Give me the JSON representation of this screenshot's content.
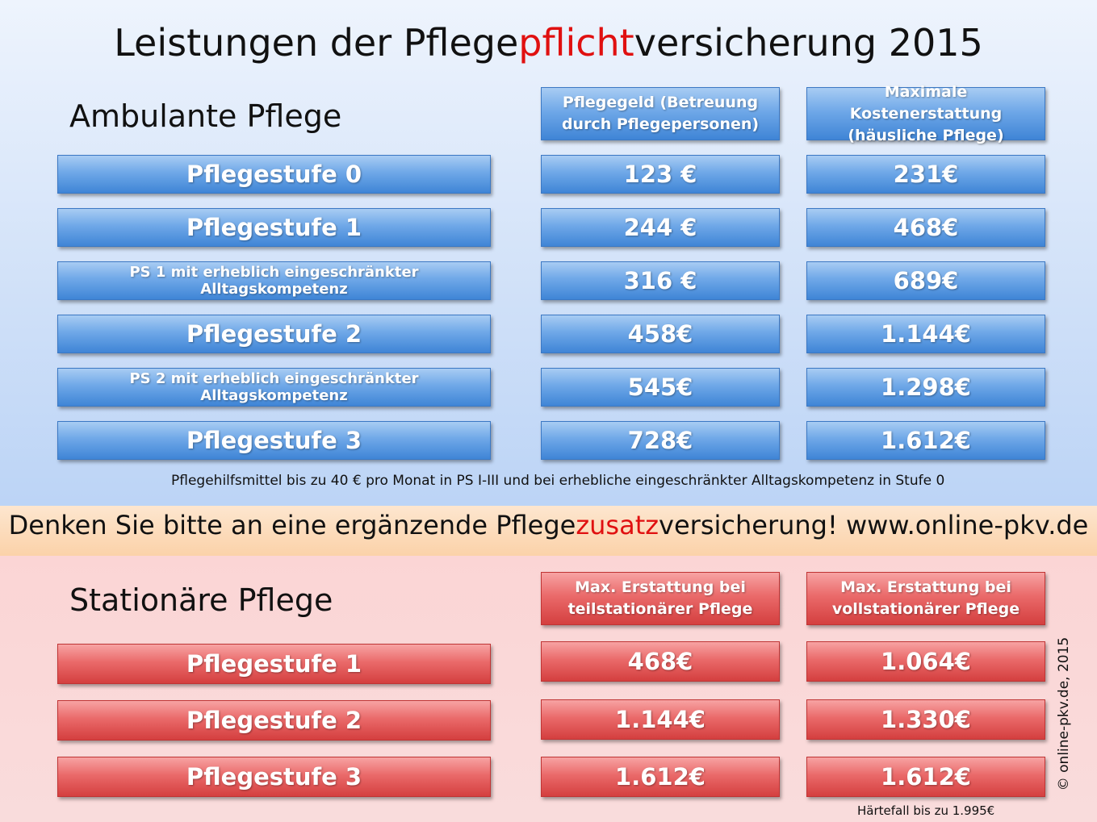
{
  "title": {
    "pre": "Leistungen der Pflege",
    "accent": "pflicht",
    "post": "versicherung 2015"
  },
  "colors": {
    "accent": "#e01010",
    "blue_box": "#4a8fdc",
    "red_box": "#e05858"
  },
  "ambulant": {
    "heading": "Ambulante Pflege",
    "col1_header": "Pflegegeld (Betreuung durch Pflegepersonen)",
    "col2_header": "Maximale Kostenerstattung (häusliche Pflege)",
    "rows": [
      {
        "label": "Pflegestufe 0",
        "pflegegeld": "123 €",
        "kosten": "231€"
      },
      {
        "label": "Pflegestufe 1",
        "pflegegeld": "244 €",
        "kosten": "468€"
      },
      {
        "label": "PS 1 mit erheblich eingeschränkter Alltagskompetenz",
        "pflegegeld": "316 €",
        "kosten": "689€"
      },
      {
        "label": "Pflegestufe 2",
        "pflegegeld": "458€",
        "kosten": "1.144€"
      },
      {
        "label": "PS 2 mit erheblich eingeschränkter Alltagskompetenz",
        "pflegegeld": "545€",
        "kosten": "1.298€"
      },
      {
        "label": "Pflegestufe 3",
        "pflegegeld": "728€",
        "kosten": "1.612€"
      }
    ],
    "note": "Pflegehilfsmittel bis zu 40 € pro Monat in PS I-III und bei erhebliche eingeschränkter Alltagskompetenz in Stufe 0"
  },
  "banner": {
    "pre": "Denken Sie bitte an eine ergänzende Pflege",
    "accent": "zusatz",
    "post": "versicherung! www.online-pkv.de"
  },
  "stationaer": {
    "heading": "Stationäre Pflege",
    "col1_header": "Max. Erstattung bei teilstationärer Pflege",
    "col2_header": "Max. Erstattung bei vollstationärer Pflege",
    "rows": [
      {
        "label": "Pflegestufe 1",
        "teil": "468€",
        "voll": "1.064€"
      },
      {
        "label": "Pflegestufe 2",
        "teil": "1.144€",
        "voll": "1.330€"
      },
      {
        "label": "Pflegestufe 3",
        "teil": "1.612€",
        "voll": "1.612€"
      }
    ],
    "note": "Härtefall bis zu 1.995€"
  },
  "copyright": "© online-pkv.de, 2015"
}
